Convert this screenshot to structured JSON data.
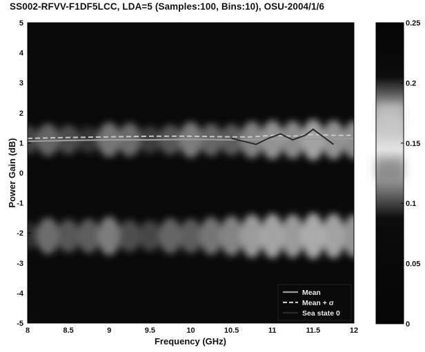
{
  "chart_data": {
    "type": "heatmap",
    "title": "SS002-RFVV-F1DF5LCC, LDA=5 (Samples:100, Bins:10), OSU-2004/1/6",
    "xlabel": "Frequency (GHz)",
    "ylabel": "Power Gain (dB)",
    "xlim": [
      8,
      12
    ],
    "ylim": [
      -5,
      5
    ],
    "x_ticks": [
      "8",
      "8.5",
      "9",
      "9.5",
      "10",
      "10.5",
      "11",
      "11.5",
      "12"
    ],
    "y_ticks": [
      "5",
      "4",
      "3",
      "2",
      "1",
      "0",
      "-1",
      "-2",
      "-3",
      "-4",
      "-5"
    ],
    "colorbar": {
      "range": [
        0,
        0.25
      ],
      "ticks": [
        "0.25",
        "0.2",
        "0.15",
        "0.1",
        "0.05",
        "0"
      ],
      "colormap": "gray"
    },
    "background_color": "#0a0a0a",
    "high_color": "#e6e6e6",
    "band_centers_db": [
      1.1,
      -2.1
    ],
    "frequency_points_ghz": [
      8.0,
      8.25,
      8.5,
      8.75,
      9.0,
      9.25,
      9.5,
      9.75,
      10.0,
      10.25,
      10.5,
      10.75,
      11.0,
      11.25,
      11.5,
      11.75,
      12.0
    ],
    "upper_band_intensity": [
      0.08,
      0.12,
      0.09,
      0.06,
      0.14,
      0.13,
      0.07,
      0.1,
      0.15,
      0.12,
      0.11,
      0.16,
      0.18,
      0.17,
      0.2,
      0.18,
      0.17
    ],
    "lower_band_intensity": [
      0.05,
      0.13,
      0.1,
      0.11,
      0.15,
      0.09,
      0.08,
      0.12,
      0.11,
      0.14,
      0.16,
      0.19,
      0.2,
      0.19,
      0.21,
      0.2,
      0.18
    ],
    "series": [
      {
        "name": "Mean",
        "x": [
          8.0,
          8.5,
          9.0,
          9.5,
          10.0,
          10.5,
          11.0,
          11.5,
          12.0
        ],
        "y": [
          1.05,
          1.08,
          1.1,
          1.1,
          1.12,
          1.1,
          1.12,
          1.12,
          1.15
        ]
      },
      {
        "name": "Mean + σ",
        "x": [
          8.0,
          8.5,
          9.0,
          9.5,
          10.0,
          10.5,
          10.75,
          11.0,
          11.25,
          11.5,
          11.75,
          12.0
        ],
        "y": [
          1.15,
          1.18,
          1.2,
          1.22,
          1.22,
          1.2,
          1.2,
          1.25,
          1.22,
          1.28,
          1.25,
          1.25
        ]
      },
      {
        "name": "Sea state 0",
        "x": [
          10.5,
          10.65,
          10.8,
          10.95,
          11.1,
          11.25,
          11.4,
          11.5,
          11.6,
          11.75
        ],
        "y": [
          1.15,
          1.05,
          0.95,
          1.15,
          1.3,
          1.1,
          1.25,
          1.45,
          1.25,
          0.95
        ]
      }
    ],
    "legend": {
      "placement": "bottom-right",
      "entries": [
        "Mean",
        "Mean + σ",
        "Sea state 0"
      ]
    }
  }
}
